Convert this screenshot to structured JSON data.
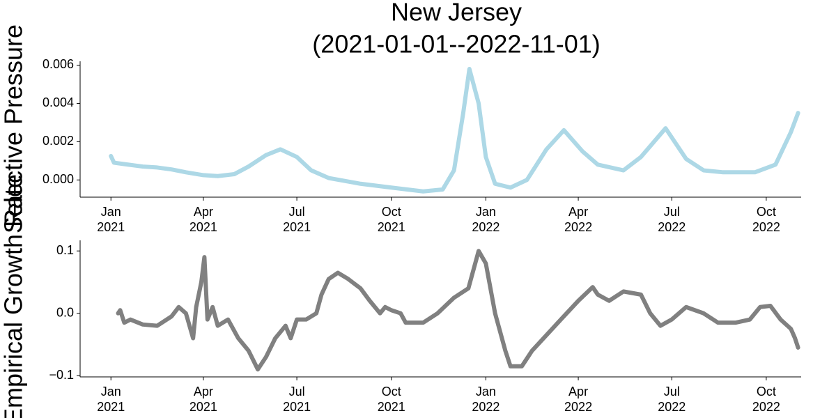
{
  "chart_data": [
    {
      "type": "line",
      "title": "New Jersey",
      "subtitle": "(2021-01-01--2022-11-01)",
      "ylabel": "Selective Pressure",
      "color": "#add8e6",
      "x": [
        "2021-01-01",
        "2021-01-04",
        "2021-01-15",
        "2021-02-01",
        "2021-02-15",
        "2021-03-01",
        "2021-03-15",
        "2021-04-01",
        "2021-04-15",
        "2021-05-01",
        "2021-05-15",
        "2021-06-01",
        "2021-06-15",
        "2021-07-01",
        "2021-07-15",
        "2021-08-01",
        "2021-09-01",
        "2021-10-01",
        "2021-11-01",
        "2021-11-20",
        "2021-12-01",
        "2021-12-10",
        "2021-12-16",
        "2021-12-25",
        "2022-01-01",
        "2022-01-10",
        "2022-01-25",
        "2022-02-10",
        "2022-03-01",
        "2022-03-18",
        "2022-04-05",
        "2022-04-20",
        "2022-05-15",
        "2022-06-01",
        "2022-06-25",
        "2022-07-15",
        "2022-08-01",
        "2022-08-20",
        "2022-09-20",
        "2022-10-10",
        "2022-10-25",
        "2022-11-01"
      ],
      "values": [
        0.00125,
        0.0009,
        0.00082,
        0.0007,
        0.00065,
        0.00055,
        0.0004,
        0.00025,
        0.0002,
        0.0003,
        0.0007,
        0.0013,
        0.0016,
        0.0012,
        0.0005,
        0.0001,
        -0.0002,
        -0.0004,
        -0.0006,
        -0.0005,
        0.0005,
        0.0035,
        0.0058,
        0.004,
        0.0012,
        -0.0002,
        -0.0004,
        0.0,
        0.0016,
        0.0026,
        0.0015,
        0.0008,
        0.0005,
        0.0012,
        0.0027,
        0.0011,
        0.0005,
        0.0004,
        0.0004,
        0.0008,
        0.0025,
        0.0035
      ],
      "xlim": [
        "2020-12-02",
        "2022-11-04"
      ],
      "ylim": [
        -0.0009,
        0.0062
      ],
      "yticks": [
        {
          "value": 0,
          "label": "0.000"
        },
        {
          "value": 0.002,
          "label": "0.002"
        },
        {
          "value": 0.004,
          "label": "0.004"
        },
        {
          "value": 0.006,
          "label": "0.006"
        }
      ],
      "xticks": [
        {
          "value": "2021-01-01",
          "label": [
            "Jan",
            "2021"
          ]
        },
        {
          "value": "2021-04-01",
          "label": [
            "Apr",
            "2021"
          ]
        },
        {
          "value": "2021-07-01",
          "label": [
            "Jul",
            "2021"
          ]
        },
        {
          "value": "2021-10-01",
          "label": [
            "Oct",
            "2021"
          ]
        },
        {
          "value": "2022-01-01",
          "label": [
            "Jan",
            "2022"
          ]
        },
        {
          "value": "2022-04-01",
          "label": [
            "Apr",
            "2022"
          ]
        },
        {
          "value": "2022-07-01",
          "label": [
            "Jul",
            "2022"
          ]
        },
        {
          "value": "2022-10-01",
          "label": [
            "Oct",
            "2022"
          ]
        }
      ]
    },
    {
      "type": "line",
      "ylabel": "Empirical Growth Rate",
      "color": "#808080",
      "x": [
        "2021-01-08",
        "2021-01-10",
        "2021-01-14",
        "2021-01-20",
        "2021-02-01",
        "2021-02-15",
        "2021-03-01",
        "2021-03-08",
        "2021-03-15",
        "2021-03-22",
        "2021-03-25",
        "2021-03-30",
        "2021-04-02",
        "2021-04-05",
        "2021-04-10",
        "2021-04-15",
        "2021-04-25",
        "2021-05-05",
        "2021-05-15",
        "2021-05-24",
        "2021-06-01",
        "2021-06-10",
        "2021-06-20",
        "2021-06-25",
        "2021-07-01",
        "2021-07-10",
        "2021-07-20",
        "2021-07-25",
        "2021-08-01",
        "2021-08-10",
        "2021-08-20",
        "2021-09-01",
        "2021-09-10",
        "2021-09-20",
        "2021-09-25",
        "2021-10-01",
        "2021-10-10",
        "2021-10-15",
        "2021-11-01",
        "2021-11-15",
        "2021-12-01",
        "2021-12-15",
        "2021-12-25",
        "2022-01-01",
        "2022-01-10",
        "2022-01-20",
        "2022-01-25",
        "2022-02-05",
        "2022-02-15",
        "2022-03-01",
        "2022-03-15",
        "2022-04-01",
        "2022-04-15",
        "2022-04-20",
        "2022-05-01",
        "2022-05-15",
        "2022-06-01",
        "2022-06-10",
        "2022-06-20",
        "2022-07-01",
        "2022-07-15",
        "2022-08-01",
        "2022-08-15",
        "2022-09-01",
        "2022-09-15",
        "2022-09-25",
        "2022-10-05",
        "2022-10-15",
        "2022-10-25",
        "2022-10-29",
        "2022-11-01"
      ],
      "values": [
        0.0,
        0.005,
        -0.015,
        -0.01,
        -0.018,
        -0.02,
        -0.005,
        0.01,
        0.0,
        -0.04,
        0.01,
        0.05,
        0.09,
        -0.01,
        0.01,
        -0.02,
        -0.01,
        -0.04,
        -0.06,
        -0.09,
        -0.07,
        -0.04,
        -0.02,
        -0.04,
        -0.01,
        -0.01,
        0.0,
        0.03,
        0.055,
        0.065,
        0.055,
        0.04,
        0.02,
        0.0,
        0.01,
        0.005,
        0.0,
        -0.015,
        -0.015,
        0.0,
        0.025,
        0.04,
        0.1,
        0.08,
        0.0,
        -0.06,
        -0.085,
        -0.085,
        -0.06,
        -0.035,
        -0.01,
        0.02,
        0.042,
        0.03,
        0.02,
        0.035,
        0.03,
        0.0,
        -0.02,
        -0.01,
        0.01,
        0.0,
        -0.015,
        -0.015,
        -0.01,
        0.01,
        0.012,
        -0.01,
        -0.025,
        -0.04,
        -0.055
      ],
      "xlim": [
        "2020-12-02",
        "2022-11-04"
      ],
      "ylim": [
        -0.102,
        0.117
      ],
      "yticks": [
        {
          "value": -0.1,
          "label": "−0.1"
        },
        {
          "value": 0,
          "label": "0.0"
        },
        0.1
      ],
      "xticks": [
        {
          "value": "2021-01-01",
          "label": [
            "Jan",
            "2021"
          ]
        },
        {
          "value": "2021-04-01",
          "label": [
            "Apr",
            "2021"
          ]
        },
        {
          "value": "2021-07-01",
          "label": [
            "Jul",
            "2021"
          ]
        },
        {
          "value": "2021-10-01",
          "label": [
            "Oct",
            "2021"
          ]
        },
        {
          "value": "2022-01-01",
          "label": [
            "Jan",
            "2022"
          ]
        },
        {
          "value": "2022-04-01",
          "label": [
            "Apr",
            "2022"
          ]
        },
        {
          "value": "2022-07-01",
          "label": [
            "Jul",
            "2022"
          ]
        },
        {
          "value": "2022-10-01",
          "label": [
            "Oct",
            "2022"
          ]
        }
      ]
    }
  ]
}
